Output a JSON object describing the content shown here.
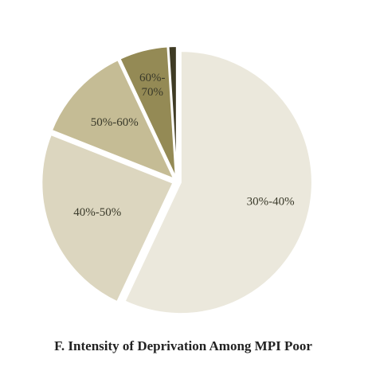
{
  "chart_data": {
    "type": "pie",
    "title": "F. Intensity of Deprivation Among MPI Poor",
    "categories": [
      "30%-40%",
      "40%-50%",
      "50%-60%",
      "60%-70%",
      null
    ],
    "values": [
      57,
      24,
      12,
      6,
      1
    ],
    "colors": [
      "#ebe8dc",
      "#dcd6bf",
      "#c5bc95",
      "#948a55",
      "#3f3b24"
    ]
  }
}
